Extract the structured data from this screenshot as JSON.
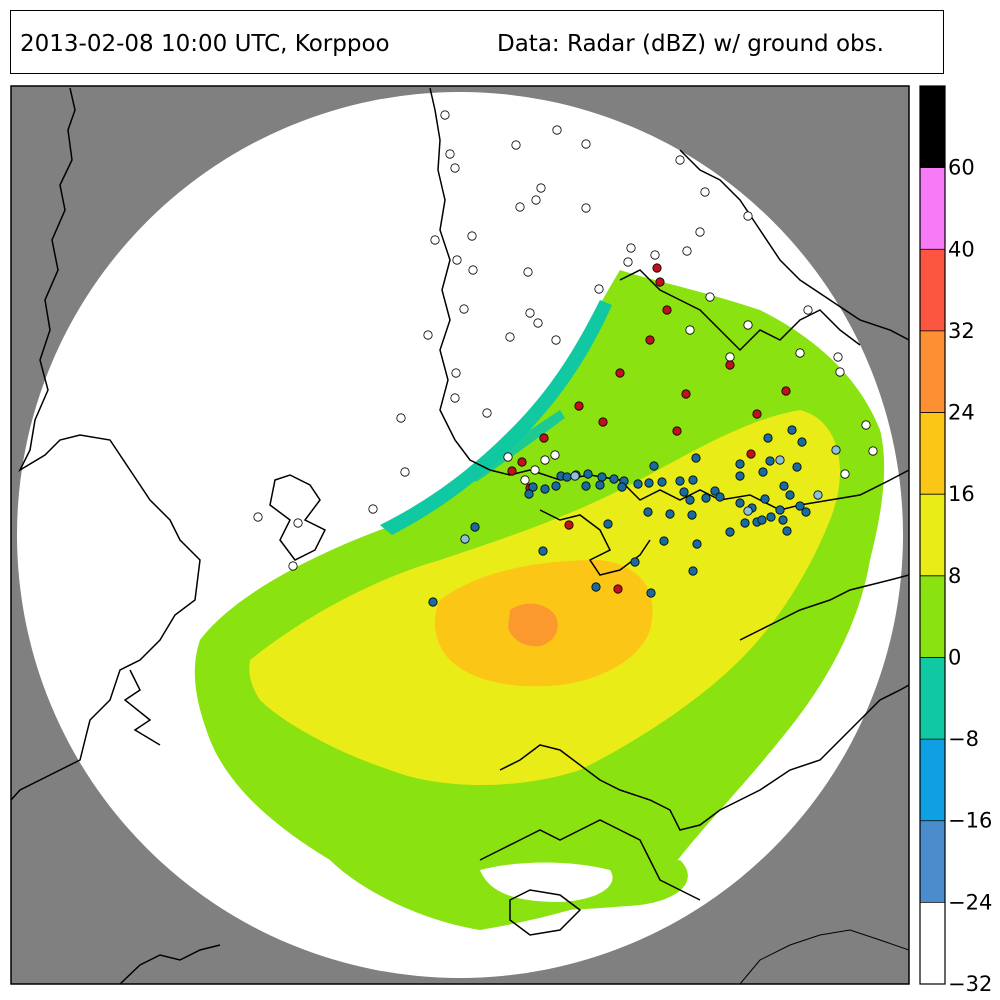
{
  "title": {
    "left": "2013-02-08 10:00 UTC, Korppoo",
    "right": "Data: Radar (dBZ) w/ ground obs."
  },
  "colors": {
    "outside_radar": "#808080",
    "radar_background": "#ffffff",
    "coastline": "#000000"
  },
  "colorbar": {
    "ticks": [
      "60",
      "40",
      "32",
      "24",
      "16",
      "8",
      "0",
      "−8",
      "−16",
      "−24",
      "−32"
    ],
    "bins": [
      {
        "from": -32,
        "to": -24,
        "color": "#ffffff"
      },
      {
        "from": -24,
        "to": -16,
        "color": "#4b8dcc"
      },
      {
        "from": -16,
        "to": -8,
        "color": "#0fa0e4"
      },
      {
        "from": -8,
        "to": 0,
        "color": "#10c8a2"
      },
      {
        "from": 0,
        "to": 8,
        "color": "#8ae210"
      },
      {
        "from": 8,
        "to": 16,
        "color": "#eaec18"
      },
      {
        "from": 16,
        "to": 24,
        "color": "#fcc616"
      },
      {
        "from": 24,
        "to": 32,
        "color": "#fc9032"
      },
      {
        "from": 32,
        "to": 40,
        "color": "#fc5540"
      },
      {
        "from": 40,
        "to": 60,
        "color": "#f77af6"
      },
      {
        "from": 60,
        "to": 80,
        "color": "#000000"
      }
    ]
  },
  "observations": {
    "legend_note": "",
    "types": [
      {
        "kind": "no-precipitation",
        "color": "#ffffff"
      },
      {
        "kind": "rain",
        "color": "#c0101c"
      },
      {
        "kind": "snow",
        "color": "#176b9e"
      },
      {
        "kind": "drizzle-or-light",
        "color": "#8cc1dc"
      }
    ]
  }
}
